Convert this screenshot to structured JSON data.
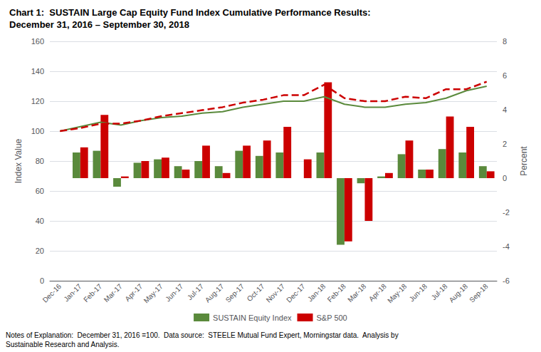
{
  "chart_data": {
    "type": "bar_line",
    "title": "Chart 1:  SUSTAIN Large Cap Equity Fund Index Cumulative Performance Results:",
    "subtitle": "December 31, 2016 – September 30, 2018",
    "annotations": [
      "Notes of Explanation:  December 31, 2016 =100.  Data source:  STEELE Mutual Fund Expert, Morningstar data.  Analysis by\nSustainable Research and Analysis."
    ],
    "ylabel": "Index Value",
    "y2label": "Percent",
    "categories": [
      "Dec-16",
      "Jan-17",
      "Feb-17",
      "Mar-17",
      "Apr-17",
      "May-17",
      "Jun-17",
      "Jul-17",
      "Aug-17",
      "Sep-17",
      "Oct-17",
      "Nov-17",
      "Dec-17",
      "Jan-18",
      "Feb-18",
      "Mar-18",
      "Apr-18",
      "May-18",
      "Jun-18",
      "Jul-18",
      "Aug-18",
      "Sep-18"
    ],
    "series": [
      {
        "name": "SUSTAIN Equity Index",
        "type": "bar",
        "axis": "y2",
        "color": "#5a8a3c",
        "values": [
          0,
          1.5,
          1.6,
          -0.5,
          0.9,
          1.1,
          0.7,
          1.0,
          0.7,
          1.6,
          1.3,
          1.5,
          0.0,
          1.5,
          -3.9,
          -0.3,
          0.1,
          1.4,
          0.5,
          1.7,
          1.5,
          0.7
        ]
      },
      {
        "name": "S&P 500",
        "type": "bar",
        "axis": "y2",
        "color": "#cc0000",
        "values": [
          0,
          1.8,
          3.7,
          0.1,
          1.0,
          1.2,
          0.5,
          1.9,
          0.3,
          1.9,
          2.2,
          3.0,
          1.1,
          5.6,
          -3.7,
          -2.5,
          0.3,
          2.2,
          0.5,
          3.6,
          3.0,
          0.4
        ]
      },
      {
        "name": "SUSTAIN Equity Index",
        "type": "line",
        "axis": "y",
        "color": "#5a8a3c",
        "line_style": "solid",
        "values": [
          100,
          103,
          106,
          104,
          107,
          109,
          110,
          112,
          113,
          116,
          118,
          120,
          120,
          123,
          118,
          116,
          116,
          118,
          119,
          122,
          127,
          130
        ]
      },
      {
        "name": "S&P 500",
        "type": "line",
        "axis": "y",
        "color": "#cc0000",
        "line_style": "dashed",
        "values": [
          100,
          102,
          105,
          105,
          107,
          110,
          112,
          114,
          116,
          119,
          121,
          124,
          124,
          131,
          122,
          120,
          120,
          123,
          122,
          128,
          128,
          133
        ]
      }
    ],
    "ylim": [
      0,
      160
    ],
    "yticks": [
      0,
      20,
      40,
      60,
      80,
      100,
      120,
      140,
      160
    ],
    "y2lim": [
      -6,
      8
    ],
    "y2ticks": [
      -6,
      -4,
      -2,
      0,
      2,
      4,
      6,
      8
    ],
    "grid": true,
    "legend": "bottom"
  }
}
